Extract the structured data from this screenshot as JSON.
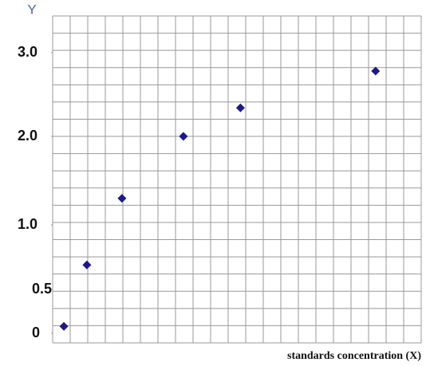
{
  "chart_data": {
    "type": "scatter",
    "y_label": "Y",
    "x_label": "standards concentration (X)",
    "x": [
      0.64,
      1.95,
      3.95,
      7.45,
      10.7,
      18.4
    ],
    "values": [
      0.08,
      0.69,
      1.3,
      2.0,
      2.34,
      2.78
    ],
    "color": "#1a1a8c",
    "xlim": [
      0,
      21
    ],
    "yticks": [
      0,
      0.5,
      {
        "value": 1,
        "label": "1.0"
      },
      {
        "value": 2,
        "label": "2.0"
      },
      {
        "value": 3,
        "label": "3.0"
      }
    ],
    "grid": true
  }
}
